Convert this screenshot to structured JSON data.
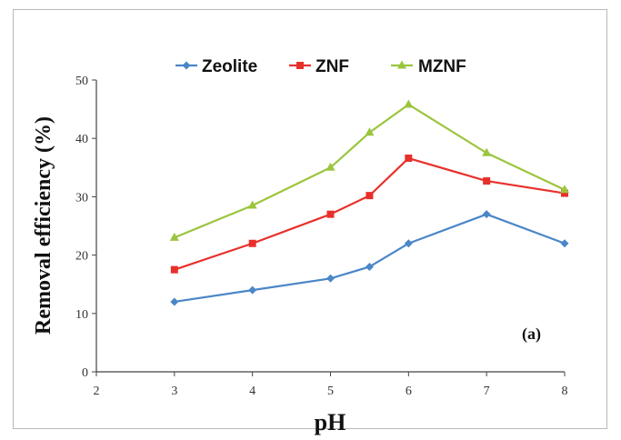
{
  "chart_data": {
    "type": "line",
    "title": "",
    "xlabel": "pH",
    "ylabel": "Removal efficiency (%)",
    "annotation": "(a)",
    "xlim": [
      2,
      8
    ],
    "ylim": [
      0,
      50
    ],
    "xticks": [
      "2",
      "3",
      "4",
      "5",
      "6",
      "7",
      "8"
    ],
    "yticks": [
      "0",
      "10",
      "20",
      "30",
      "40",
      "50"
    ],
    "legend_position": "top",
    "grid": false,
    "series": [
      {
        "name": "Zeolite",
        "color": "#4a86c8",
        "marker": "diamond",
        "points": [
          [
            3,
            12
          ],
          [
            4,
            14
          ],
          [
            5,
            16
          ],
          [
            5.5,
            18
          ],
          [
            6,
            22
          ],
          [
            7,
            27
          ],
          [
            8,
            22
          ]
        ]
      },
      {
        "name": "ZNF",
        "color": "#e8302b",
        "marker": "square",
        "points": [
          [
            3,
            17.5
          ],
          [
            4,
            22
          ],
          [
            5,
            27
          ],
          [
            5.5,
            30.2
          ],
          [
            6,
            36.6
          ],
          [
            7,
            32.7
          ],
          [
            8,
            30.6
          ]
        ]
      },
      {
        "name": "MZNF",
        "color": "#9bc53d",
        "marker": "triangle",
        "points": [
          [
            3,
            23
          ],
          [
            4,
            28.5
          ],
          [
            5,
            35
          ],
          [
            5.5,
            41
          ],
          [
            6,
            45.8
          ],
          [
            7,
            37.5
          ],
          [
            8,
            31.2
          ]
        ]
      }
    ]
  }
}
